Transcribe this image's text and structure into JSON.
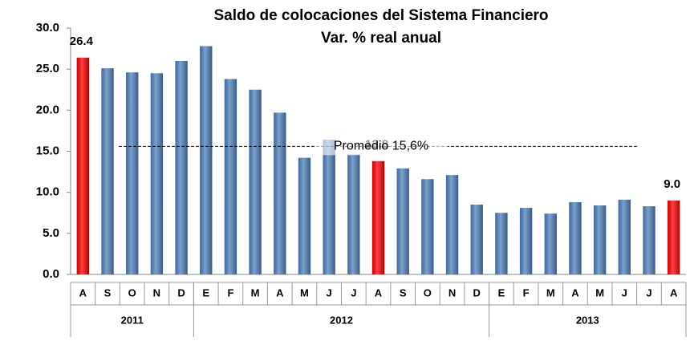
{
  "chart_data": {
    "type": "bar",
    "title": "Saldo de colocaciones del Sistema Financiero",
    "subtitle": "Var. % real anual",
    "categories": [
      "A",
      "S",
      "O",
      "N",
      "D",
      "E",
      "F",
      "M",
      "A",
      "M",
      "J",
      "J",
      "A",
      "S",
      "O",
      "N",
      "D",
      "E",
      "F",
      "M",
      "A",
      "M",
      "J",
      "J",
      "A"
    ],
    "year_groups": [
      {
        "label": "2011",
        "size": 5
      },
      {
        "label": "2012",
        "size": 12
      },
      {
        "label": "2013",
        "size": 8
      }
    ],
    "values": [
      26.4,
      25.1,
      24.6,
      24.5,
      26.0,
      27.8,
      23.8,
      22.5,
      19.7,
      14.2,
      16.4,
      14.6,
      13.8,
      12.9,
      11.6,
      12.1,
      8.5,
      7.5,
      8.1,
      7.4,
      8.8,
      8.4,
      9.1,
      8.3,
      9.0
    ],
    "value_labels": [
      "26.4",
      null,
      null,
      null,
      null,
      null,
      null,
      null,
      null,
      null,
      null,
      null,
      "13.8",
      null,
      null,
      null,
      null,
      null,
      null,
      null,
      null,
      null,
      null,
      null,
      "9.0"
    ],
    "colors": [
      "#ff0000",
      "#4f81bd",
      "#4f81bd",
      "#4f81bd",
      "#4f81bd",
      "#4f81bd",
      "#4f81bd",
      "#4f81bd",
      "#4f81bd",
      "#4f81bd",
      "#4f81bd",
      "#4f81bd",
      "#ff0000",
      "#4f81bd",
      "#4f81bd",
      "#4f81bd",
      "#4f81bd",
      "#4f81bd",
      "#4f81bd",
      "#4f81bd",
      "#4f81bd",
      "#4f81bd",
      "#4f81bd",
      "#4f81bd",
      "#ff0000"
    ],
    "reference_line": {
      "value": 15.6,
      "label": "Promedio 15,6%"
    },
    "ylim": [
      0,
      30
    ],
    "yticks": [
      {
        "value": 0,
        "label": "0.0"
      },
      {
        "value": 5,
        "label": "5.0"
      },
      {
        "value": 10,
        "label": "10.0"
      },
      {
        "value": 15,
        "label": "15.0"
      },
      {
        "value": 20,
        "label": "20.0"
      },
      {
        "value": 25,
        "label": "25.0"
      },
      {
        "value": 30,
        "label": "30.0"
      }
    ]
  }
}
